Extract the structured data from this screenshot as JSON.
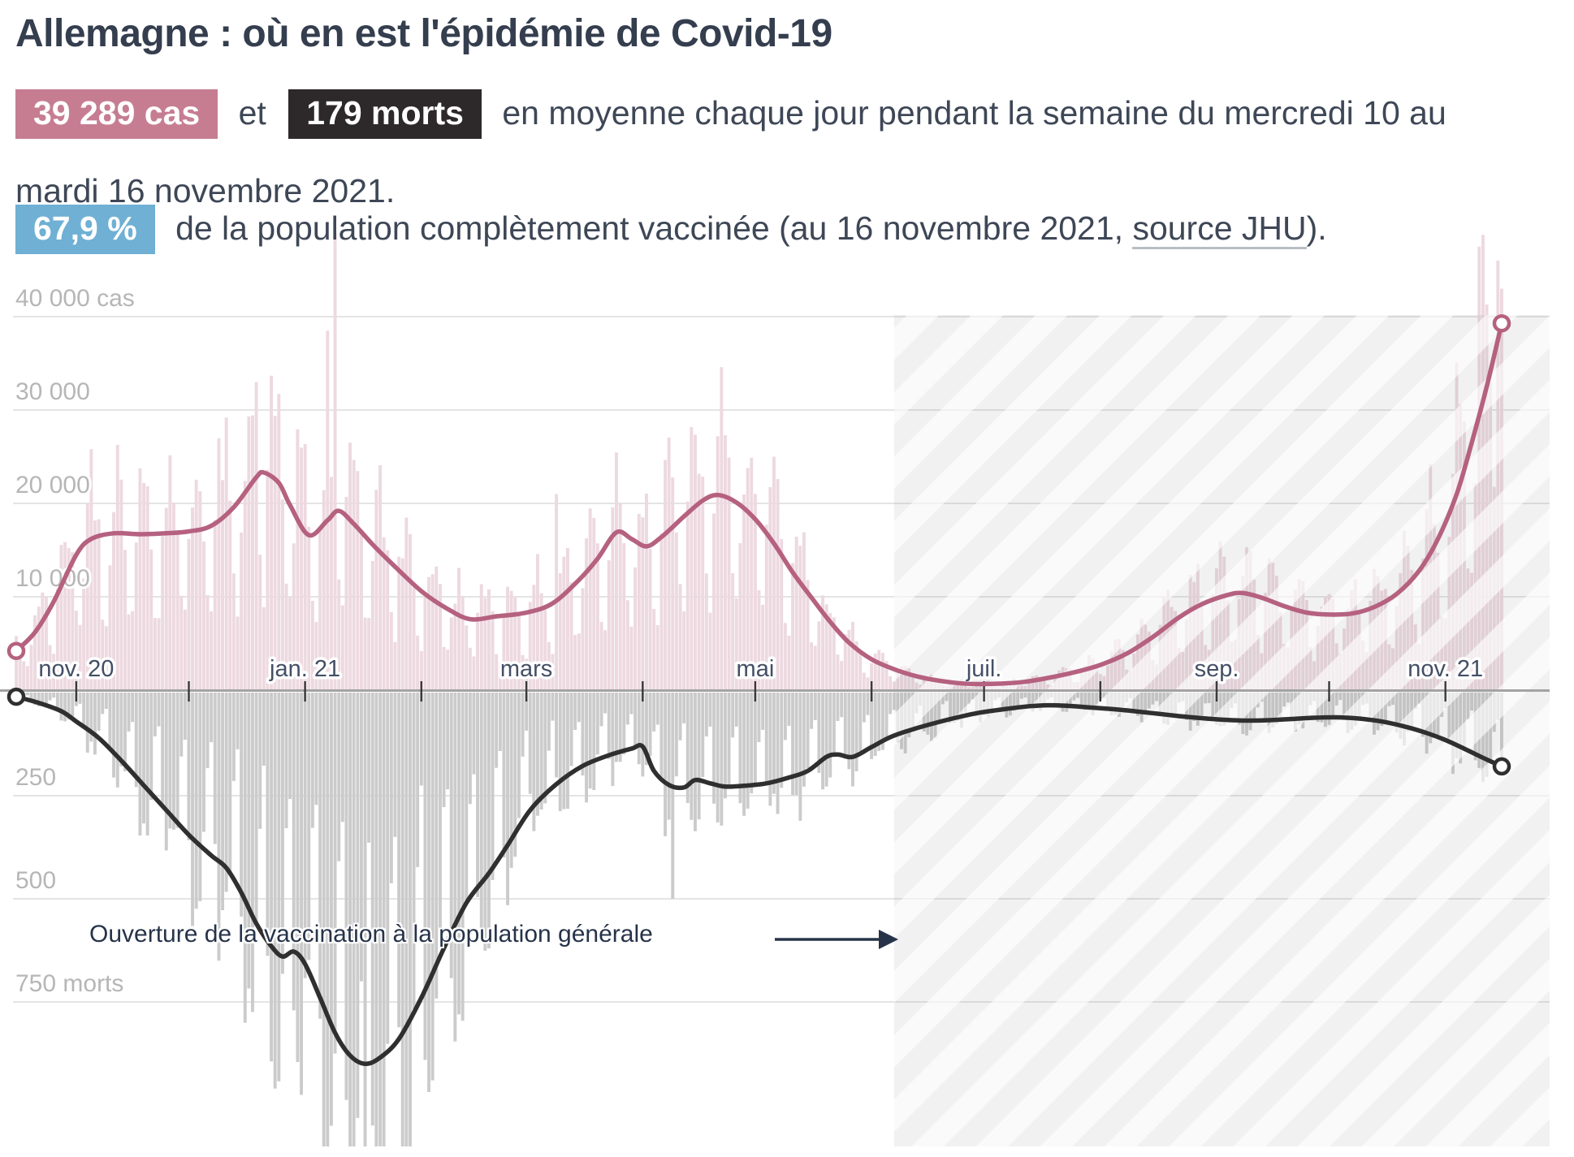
{
  "header": {
    "title": "Allemagne : où en est l'épidémie de Covid-19",
    "stats": {
      "cases_badge": "39 289 cas",
      "conjunction": "et",
      "deaths_badge": "179 morts",
      "line1_rest": "en moyenne chaque jour pendant la semaine du mercredi 10 au",
      "line2": "mardi 16 novembre 2021."
    },
    "vaccine": {
      "badge": "67,9 %",
      "text_before_link": "de la population complètement vaccinée (au 16 novembre 2021, ",
      "link": "source JHU",
      "text_after_link": ")."
    }
  },
  "colors": {
    "cases_bar": "#edd9e0",
    "cases_line": "#b5617f",
    "deaths_bar": "#cbcbcb",
    "deaths_line": "#2f2f2f",
    "grid": "#e4e4e4",
    "axis_line": "#a3a3a3",
    "tick": "#3a3a3a",
    "value_label": "#b6b6b6",
    "month_label": "#444f66",
    "annotation": "#263349",
    "badge_cases_bg": "#c67d92",
    "badge_deaths_bg": "#2d282a",
    "badge_vaccine_bg": "#6fb0d4"
  },
  "chart_data": {
    "type": "bar+line",
    "title": "Cas quotidiens (haut, rose) et morts quotidiennes (bas, gris) avec moyennes sur 7 jours",
    "x_unit": "jours depuis le 16 octobre 2020",
    "x_domain_days": [
      0,
      396
    ],
    "grid": true,
    "legend": "none",
    "x_ticks": [
      {
        "day": 16,
        "label": "nov. 20"
      },
      {
        "day": 46,
        "label": ""
      },
      {
        "day": 77,
        "label": "jan. 21"
      },
      {
        "day": 108,
        "label": ""
      },
      {
        "day": 136,
        "label": "mars"
      },
      {
        "day": 167,
        "label": ""
      },
      {
        "day": 197,
        "label": "mai"
      },
      {
        "day": 228,
        "label": ""
      },
      {
        "day": 258,
        "label": "juil."
      },
      {
        "day": 289,
        "label": ""
      },
      {
        "day": 320,
        "label": "sep."
      },
      {
        "day": 350,
        "label": ""
      },
      {
        "day": 381,
        "label": "nov. 21"
      }
    ],
    "cases": {
      "ylim": [
        0,
        42500
      ],
      "axis_labels": [
        {
          "value": 10000,
          "label": "10 000"
        },
        {
          "value": 20000,
          "label": "20 000"
        },
        {
          "value": 30000,
          "label": "30 000"
        },
        {
          "value": 40000,
          "label": "40 000 cas"
        }
      ],
      "end_value": 39289,
      "avg_points": [
        [
          0,
          4200
        ],
        [
          5,
          6200
        ],
        [
          10,
          9500
        ],
        [
          16,
          14500
        ],
        [
          20,
          16200
        ],
        [
          26,
          16800
        ],
        [
          33,
          16700
        ],
        [
          40,
          16800
        ],
        [
          46,
          17000
        ],
        [
          52,
          17600
        ],
        [
          58,
          19600
        ],
        [
          64,
          22800
        ],
        [
          66,
          23300
        ],
        [
          70,
          22200
        ],
        [
          73,
          19800
        ],
        [
          78,
          16600
        ],
        [
          83,
          18200
        ],
        [
          86,
          19200
        ],
        [
          90,
          17800
        ],
        [
          95,
          15600
        ],
        [
          100,
          13600
        ],
        [
          108,
          10600
        ],
        [
          115,
          8700
        ],
        [
          121,
          7600
        ],
        [
          128,
          7900
        ],
        [
          136,
          8300
        ],
        [
          143,
          9300
        ],
        [
          150,
          11800
        ],
        [
          155,
          14100
        ],
        [
          160,
          16900
        ],
        [
          164,
          16200
        ],
        [
          168,
          15400
        ],
        [
          172,
          16400
        ],
        [
          178,
          18600
        ],
        [
          183,
          20300
        ],
        [
          187,
          20900
        ],
        [
          192,
          20100
        ],
        [
          197,
          18300
        ],
        [
          202,
          15700
        ],
        [
          207,
          12600
        ],
        [
          212,
          9900
        ],
        [
          217,
          7300
        ],
        [
          222,
          5100
        ],
        [
          228,
          3300
        ],
        [
          235,
          2100
        ],
        [
          242,
          1300
        ],
        [
          250,
          800
        ],
        [
          256,
          650
        ],
        [
          262,
          700
        ],
        [
          268,
          850
        ],
        [
          275,
          1300
        ],
        [
          282,
          1900
        ],
        [
          289,
          2700
        ],
        [
          296,
          3900
        ],
        [
          303,
          5700
        ],
        [
          310,
          7800
        ],
        [
          316,
          9200
        ],
        [
          323,
          10200
        ],
        [
          327,
          10400
        ],
        [
          332,
          9900
        ],
        [
          338,
          9000
        ],
        [
          344,
          8300
        ],
        [
          350,
          8100
        ],
        [
          356,
          8200
        ],
        [
          362,
          8900
        ],
        [
          368,
          10300
        ],
        [
          374,
          12800
        ],
        [
          379,
          16200
        ],
        [
          384,
          21000
        ],
        [
          388,
          26500
        ],
        [
          392,
          32500
        ],
        [
          396,
          39289
        ]
      ],
      "daily_bars": {
        "weekday_factors": [
          0.45,
          0.95,
          1.28,
          1.42,
          1.33,
          1.08,
          0.55
        ],
        "jitter": 0.36,
        "seed": 42,
        "overrides": {
          "64": 33000,
          "83": 38500,
          "85": 49000,
          "144": 21000,
          "390": 47500,
          "395": 46000,
          "396": 43000
        }
      }
    },
    "deaths": {
      "ylim": [
        0,
        1150
      ],
      "inverted": true,
      "axis_labels": [
        {
          "value": 250,
          "label": "250"
        },
        {
          "value": 500,
          "label": "500"
        },
        {
          "value": 750,
          "label": "750 morts"
        }
      ],
      "end_value": 179,
      "avg_points": [
        [
          0,
          10
        ],
        [
          6,
          25
        ],
        [
          12,
          45
        ],
        [
          16,
          70
        ],
        [
          22,
          110
        ],
        [
          28,
          165
        ],
        [
          34,
          225
        ],
        [
          40,
          285
        ],
        [
          46,
          345
        ],
        [
          52,
          395
        ],
        [
          56,
          425
        ],
        [
          60,
          485
        ],
        [
          64,
          560
        ],
        [
          68,
          615
        ],
        [
          71,
          640
        ],
        [
          74,
          628
        ],
        [
          77,
          658
        ],
        [
          81,
          740
        ],
        [
          85,
          825
        ],
        [
          89,
          880
        ],
        [
          93,
          900
        ],
        [
          97,
          885
        ],
        [
          102,
          840
        ],
        [
          108,
          740
        ],
        [
          114,
          620
        ],
        [
          120,
          510
        ],
        [
          126,
          438
        ],
        [
          131,
          370
        ],
        [
          137,
          285
        ],
        [
          144,
          222
        ],
        [
          151,
          178
        ],
        [
          158,
          152
        ],
        [
          164,
          136
        ],
        [
          167,
          131
        ],
        [
          170,
          190
        ],
        [
          174,
          224
        ],
        [
          178,
          230
        ],
        [
          181,
          212
        ],
        [
          185,
          220
        ],
        [
          189,
          228
        ],
        [
          194,
          226
        ],
        [
          200,
          220
        ],
        [
          206,
          206
        ],
        [
          211,
          190
        ],
        [
          216,
          156
        ],
        [
          219,
          150
        ],
        [
          223,
          156
        ],
        [
          228,
          132
        ],
        [
          233,
          108
        ],
        [
          238,
          92
        ],
        [
          244,
          76
        ],
        [
          250,
          62
        ],
        [
          256,
          50
        ],
        [
          262,
          42
        ],
        [
          268,
          35
        ],
        [
          274,
          31
        ],
        [
          280,
          32
        ],
        [
          286,
          36
        ],
        [
          292,
          40
        ],
        [
          298,
          45
        ],
        [
          304,
          51
        ],
        [
          310,
          57
        ],
        [
          316,
          62
        ],
        [
          322,
          66
        ],
        [
          328,
          68
        ],
        [
          334,
          67
        ],
        [
          340,
          64
        ],
        [
          346,
          61
        ],
        [
          352,
          60
        ],
        [
          358,
          63
        ],
        [
          364,
          70
        ],
        [
          370,
          82
        ],
        [
          376,
          98
        ],
        [
          381,
          115
        ],
        [
          386,
          136
        ],
        [
          391,
          158
        ],
        [
          396,
          179
        ]
      ],
      "daily_bars": {
        "weekday_factors": [
          0.35,
          1.05,
          1.38,
          1.35,
          1.28,
          0.95,
          0.5
        ],
        "jitter": 0.36,
        "seed": 7,
        "overrides": {
          "90": 1130,
          "93": 1180,
          "97": 1100,
          "175": 500
        }
      }
    },
    "highlighted_period": {
      "style": "hatched",
      "start_day": 234,
      "end_day": 396
    },
    "annotation": {
      "text": "Ouverture de la vaccination à la population générale",
      "arrow": "right",
      "points_to_day": 234
    }
  }
}
